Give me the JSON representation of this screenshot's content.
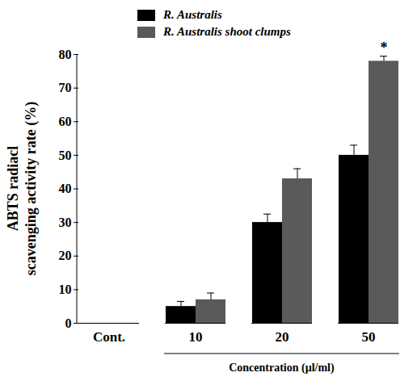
{
  "chart_data": {
    "type": "bar",
    "categories": [
      "Cont.",
      "10",
      "20",
      "50"
    ],
    "x_label": "Concentration (μl/ml)",
    "y_label": "ABTS radiacl\nscavenging activity rate (%)",
    "series": [
      {
        "name": "R. Australis",
        "color": "#000000",
        "values": [
          0,
          5,
          30,
          50
        ],
        "errors": [
          0,
          1.5,
          2.5,
          3
        ]
      },
      {
        "name": "R. Australis shoot clumps",
        "color": "#5a5a5a",
        "values": [
          0,
          7,
          43,
          78
        ],
        "errors": [
          0,
          2,
          3,
          1.5
        ]
      }
    ],
    "ylim": [
      0,
      80
    ],
    "yticks": [
      0,
      10,
      20,
      30,
      40,
      50,
      60,
      70,
      80
    ],
    "legend": "top-left",
    "annotations": [
      {
        "text": "*",
        "category": "50",
        "series": "R. Australis shoot clumps"
      }
    ]
  }
}
